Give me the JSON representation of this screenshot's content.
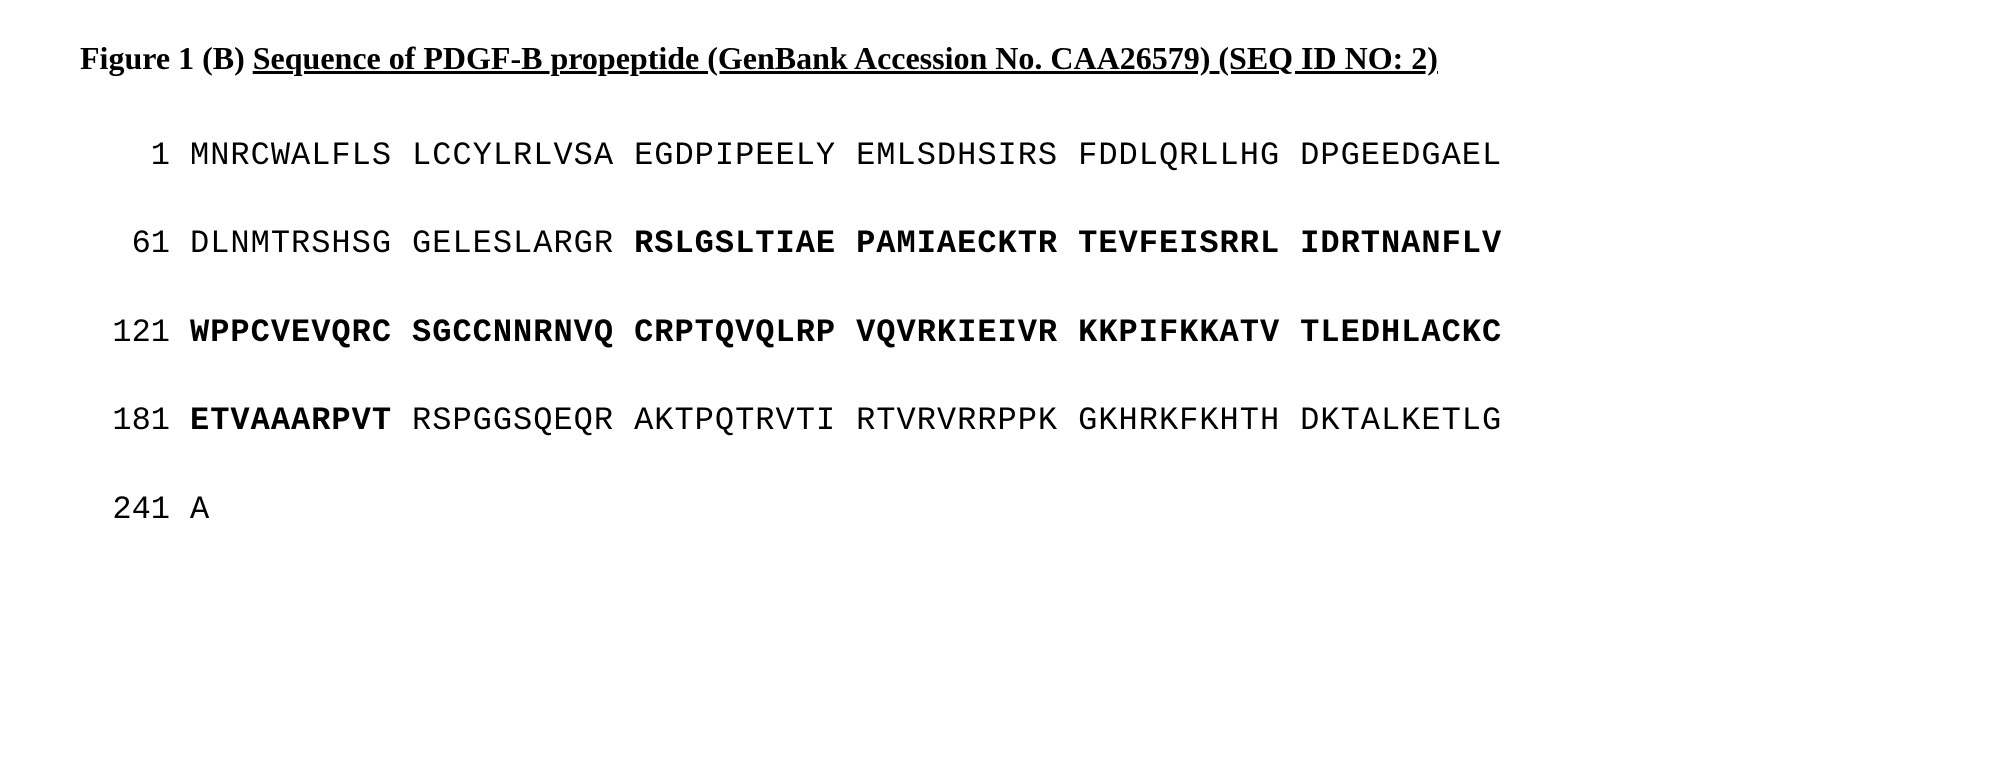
{
  "title": {
    "prefix": "Figure 1 (B) ",
    "underlined": "Sequence of PDGF-B propeptide (GenBank Accession No. CAA26579) (SEQ ID NO: 2)"
  },
  "sequence": {
    "rows": [
      {
        "position": "1",
        "blocks": [
          {
            "text": "MNRCWALFLS",
            "bold": false
          },
          {
            "text": "LCCYLRLVSA",
            "bold": false
          },
          {
            "text": "EGDPIPEELY",
            "bold": false
          },
          {
            "text": "EMLSDHSIRS",
            "bold": false
          },
          {
            "text": "FDDLQRLLHG",
            "bold": false
          },
          {
            "text": "DPGEEDGAEL",
            "bold": false
          }
        ]
      },
      {
        "position": "61",
        "blocks": [
          {
            "text": "DLNMTRSHSG",
            "bold": false
          },
          {
            "text": "GELESLARGR",
            "bold": false
          },
          {
            "text": "RSLGSLTIAE",
            "bold": true
          },
          {
            "text": "PAMIAECKTR",
            "bold": true
          },
          {
            "text": "TEVFEISRRL",
            "bold": true
          },
          {
            "text": "IDRTNANFLV",
            "bold": true
          }
        ]
      },
      {
        "position": "121",
        "blocks": [
          {
            "text": "WPPCVEVQRC",
            "bold": true
          },
          {
            "text": "SGCCNNRNVQ",
            "bold": true
          },
          {
            "text": "CRPTQVQLRP",
            "bold": true
          },
          {
            "text": "VQVRKIEIVR",
            "bold": true
          },
          {
            "text": "KKPIFKKATV",
            "bold": true
          },
          {
            "text": "TLEDHLACKC",
            "bold": true
          }
        ]
      },
      {
        "position": "181",
        "blocks": [
          {
            "text": "ETVAAARPVT",
            "bold": true
          },
          {
            "text": "RSPGGSQEQR",
            "bold": false
          },
          {
            "text": "AKTPQTRVTI",
            "bold": false
          },
          {
            "text": "RTVRVRRPPK",
            "bold": false
          },
          {
            "text": "GKHRKFKHTH",
            "bold": false
          },
          {
            "text": "DKTALKETLG",
            "bold": false
          }
        ]
      },
      {
        "position": "241",
        "blocks": [
          {
            "text": "A",
            "bold": false
          }
        ]
      }
    ]
  },
  "styles": {
    "background_color": "#ffffff",
    "text_color": "#000000",
    "title_font_family": "Times New Roman",
    "title_font_size": 32,
    "sequence_font_family": "Courier New",
    "sequence_font_size": 32,
    "row_spacing": 50,
    "block_spacing": 20,
    "position_label_width": 90
  }
}
